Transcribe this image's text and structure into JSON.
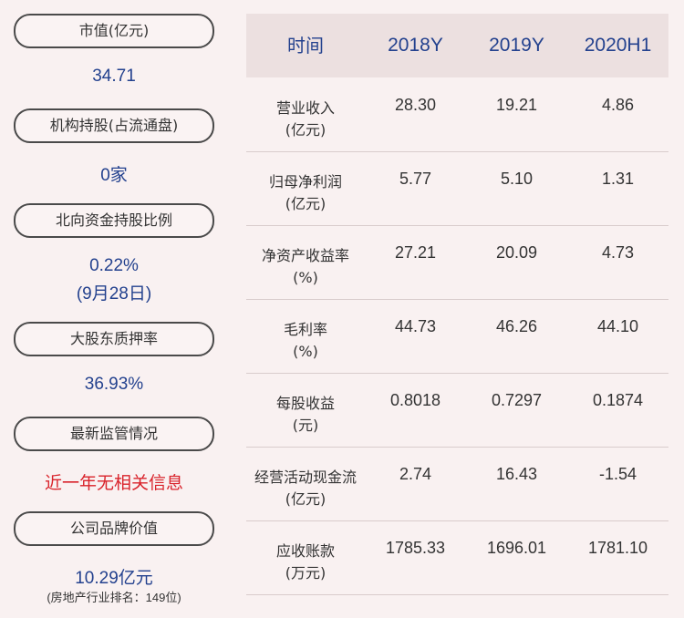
{
  "left": {
    "items": [
      {
        "label": "市值(亿元)",
        "value": "34.71"
      },
      {
        "label": "机构持股(占流通盘)",
        "value": "0家"
      },
      {
        "label": "北向资金持股比例",
        "value": "0.22%",
        "value2": "(9月28日)"
      },
      {
        "label": "大股东质押率",
        "value": "36.93%"
      },
      {
        "label": "最新监管情况",
        "value": "近一年无相关信息"
      },
      {
        "label": "公司品牌价值",
        "value": "10.29亿元",
        "note": "(房地产行业排名：149位)"
      }
    ]
  },
  "table": {
    "headers": [
      "时间",
      "2018Y",
      "2019Y",
      "2020H1"
    ],
    "rows": [
      {
        "label1": "营业收入",
        "label2": "(亿元)",
        "v": [
          "28.30",
          "19.21",
          "4.86"
        ]
      },
      {
        "label1": "归母净利润",
        "label2": "(亿元)",
        "v": [
          "5.77",
          "5.10",
          "1.31"
        ]
      },
      {
        "label1": "净资产收益率",
        "label2": "(%)",
        "v": [
          "27.21",
          "20.09",
          "4.73"
        ]
      },
      {
        "label1": "毛利率",
        "label2": "(%)",
        "v": [
          "44.73",
          "46.26",
          "44.10"
        ]
      },
      {
        "label1": "每股收益",
        "label2": "(元)",
        "v": [
          "0.8018",
          "0.7297",
          "0.1874"
        ]
      },
      {
        "label1": "经营活动现金流",
        "label2": "(亿元)",
        "v": [
          "2.74",
          "16.43",
          "-1.54"
        ]
      },
      {
        "label1": "应收账款",
        "label2": "(万元)",
        "v": [
          "1785.33",
          "1696.01",
          "1781.10"
        ]
      }
    ]
  },
  "colors": {
    "background": "#f9f1f1",
    "header_bg": "#ece0e0",
    "value_blue": "#23418e",
    "alert_red": "#d9232b"
  }
}
